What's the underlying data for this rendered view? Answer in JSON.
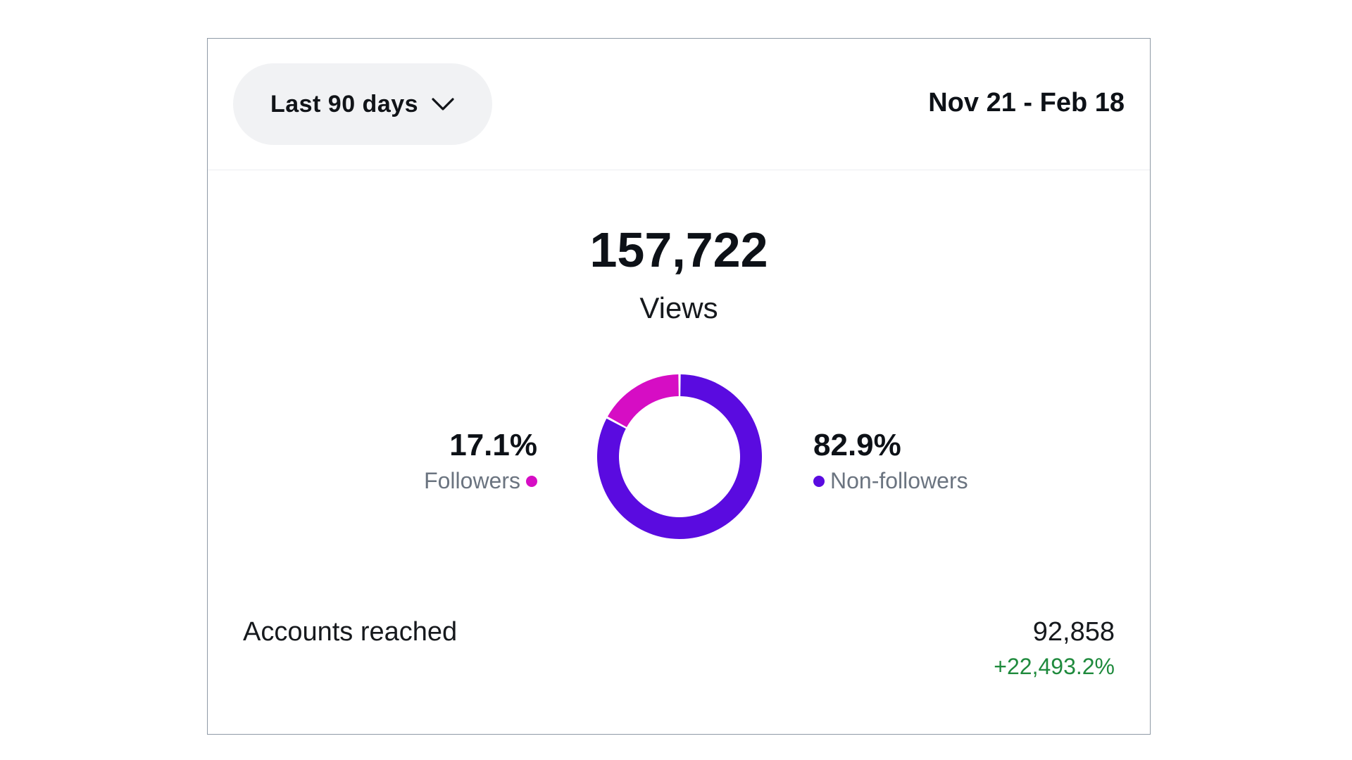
{
  "range_selector": {
    "label": "Last 90 days",
    "icon": "chevron-down-icon"
  },
  "date_range": "Nov 21 - Feb 18",
  "views": {
    "value": "157,722",
    "label": "Views"
  },
  "breakdown": {
    "followers": {
      "percent": "17.1%",
      "label": "Followers",
      "color": "#d60dc4"
    },
    "non_followers": {
      "percent": "82.9%",
      "label": "Non-followers",
      "color": "#5a0be0"
    }
  },
  "chart_data": {
    "type": "pie",
    "categories": [
      "Followers",
      "Non-followers"
    ],
    "values": [
      17.1,
      82.9
    ],
    "colors": [
      "#d60dc4",
      "#5a0be0"
    ]
  },
  "accounts_reached": {
    "label": "Accounts reached",
    "value": "92,858",
    "change": "+22,493.2%",
    "change_color": "#1f8a3d"
  }
}
